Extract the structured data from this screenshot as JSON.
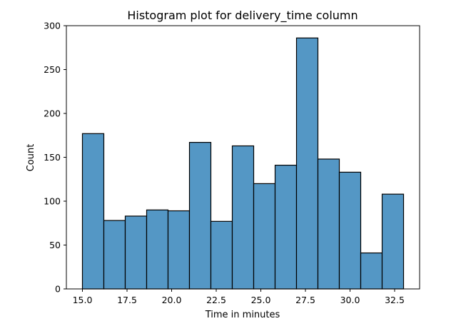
{
  "chart_data": {
    "type": "bar",
    "title": "Histogram plot for delivery_time column",
    "xlabel": "Time in minutes",
    "ylabel": "Count",
    "bin_edges": [
      15.0,
      16.2,
      17.4,
      18.6,
      19.8,
      21.0,
      22.2,
      23.4,
      24.6,
      25.8,
      27.0,
      28.2,
      29.4,
      30.6,
      31.8,
      33.0
    ],
    "values": [
      177,
      78,
      83,
      90,
      89,
      167,
      77,
      163,
      120,
      141,
      286,
      148,
      133,
      41,
      108
    ],
    "xlim": [
      14.1,
      33.9
    ],
    "ylim": [
      0,
      300
    ],
    "xticks": [
      15.0,
      17.5,
      20.0,
      22.5,
      25.0,
      27.5,
      30.0,
      32.5
    ],
    "xtick_labels": [
      "15.0",
      "17.5",
      "20.0",
      "22.5",
      "25.0",
      "27.5",
      "30.0",
      "32.5"
    ],
    "yticks": [
      0,
      50,
      100,
      150,
      200,
      250,
      300
    ],
    "ytick_labels": [
      "0",
      "50",
      "100",
      "150",
      "200",
      "250",
      "300"
    ],
    "bar_color": "#5497c5",
    "edge_color": "#000000",
    "grid": false,
    "legend": false
  }
}
